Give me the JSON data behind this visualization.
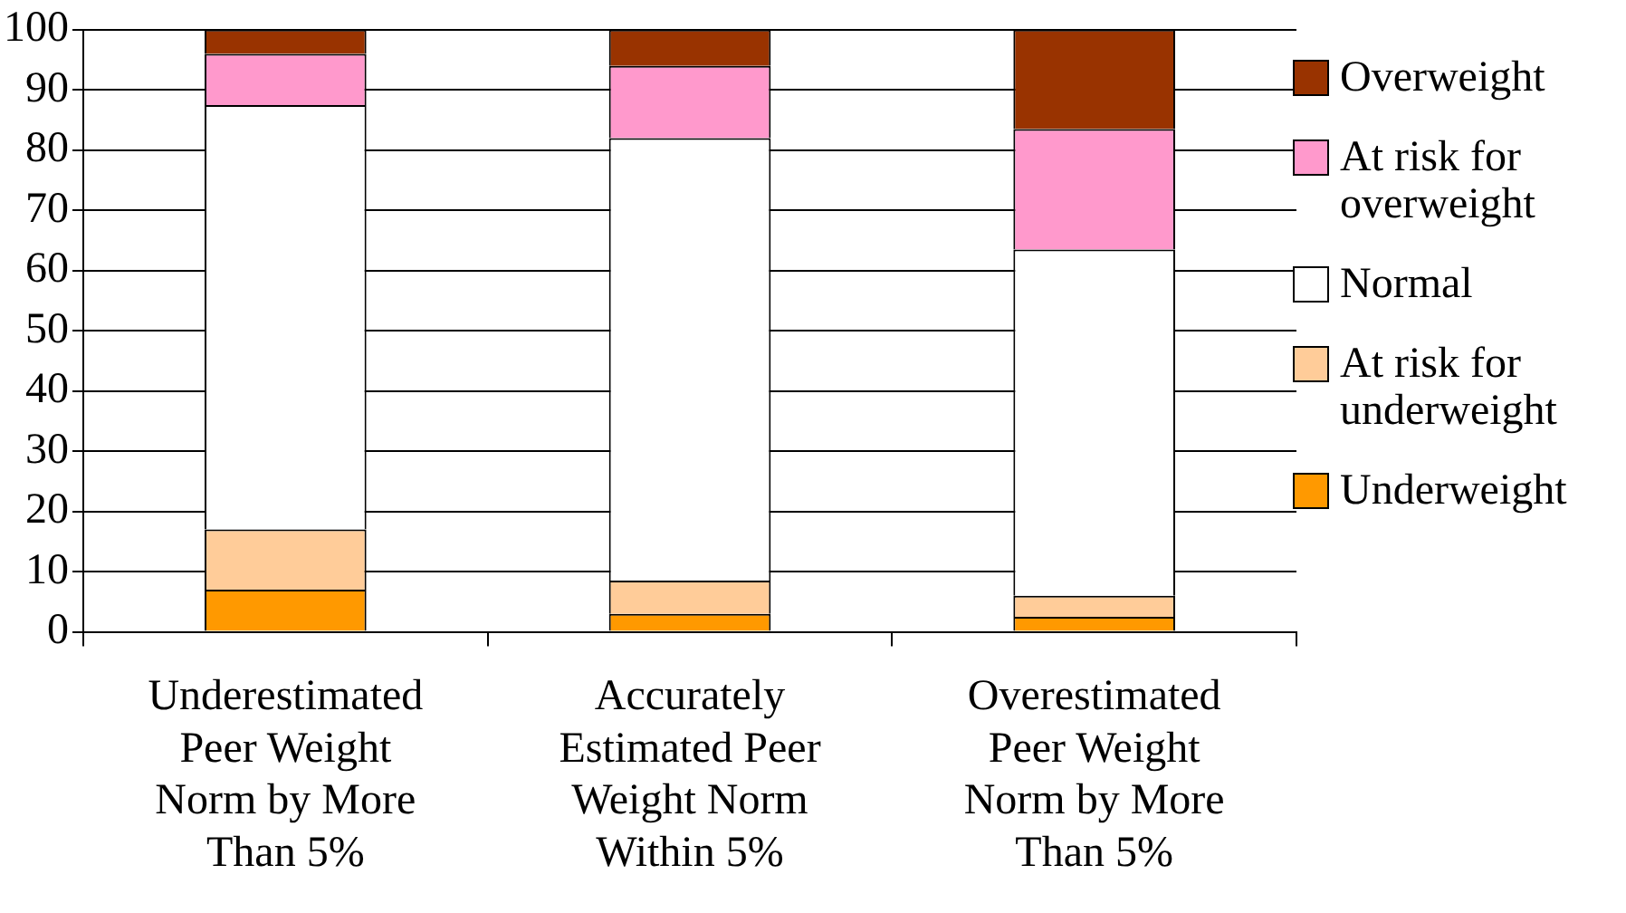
{
  "chart_data": {
    "type": "bar",
    "stacked": true,
    "categories": [
      "Underestimated Peer Weight Norm by More Than 5%",
      "Accurately Estimated Peer Weight Norm Within 5%",
      "Overestimated Peer Weight Norm by More Than 5%"
    ],
    "series": [
      {
        "name": "Underweight",
        "color": "#ff9900",
        "values": [
          7,
          3,
          2.5
        ]
      },
      {
        "name": "At risk for underweight",
        "color": "#ffcc99",
        "values": [
          10,
          5.5,
          3.5
        ]
      },
      {
        "name": "Normal",
        "color": "#ffffff",
        "values": [
          70.5,
          73.5,
          57.5
        ]
      },
      {
        "name": "At risk for overweight",
        "color": "#ff99cc",
        "values": [
          8.5,
          12,
          20
        ]
      },
      {
        "name": "Overweight",
        "color": "#993300",
        "values": [
          4,
          6,
          16.5
        ]
      }
    ],
    "ylim": [
      0,
      100
    ],
    "yticks": [
      0,
      10,
      20,
      30,
      40,
      50,
      60,
      70,
      80,
      90,
      100
    ],
    "grid": "y",
    "legend": "right"
  }
}
